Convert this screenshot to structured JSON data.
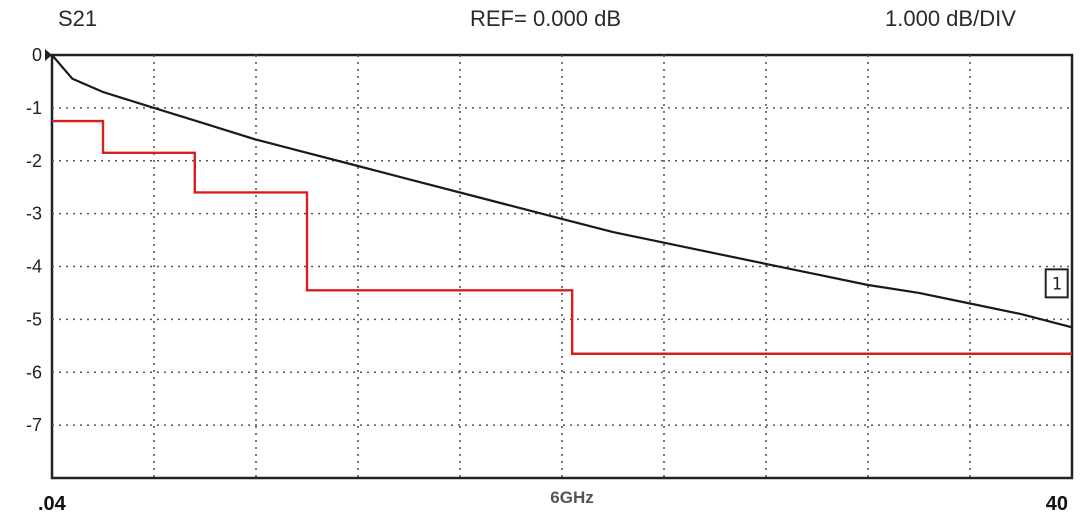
{
  "header": {
    "param": "S21",
    "ref": "REF= 0.000 dB",
    "scale": "1.000 dB/DIV"
  },
  "colors": {
    "trace": "#1a1a1a",
    "limit": "#d62020",
    "grid": "#555555",
    "frame": "#222222"
  },
  "chart_data": {
    "type": "line",
    "ylim": [
      -8,
      0
    ],
    "y_ticks": [
      "0",
      "-1",
      "-2",
      "-3",
      "-4",
      "-5",
      "-6",
      "-7"
    ],
    "x_tick_labels": [
      ".04",
      "6GHz",
      "40"
    ],
    "x_divisions": 10,
    "grid": true,
    "series": [
      {
        "role": "measured",
        "x_div": [
          0,
          0.2,
          0.5,
          1,
          1.5,
          2,
          2.5,
          3,
          3.5,
          4,
          4.5,
          5,
          5.5,
          6,
          6.5,
          7,
          7.5,
          8,
          8.5,
          9,
          9.5,
          10
        ],
        "y": [
          0,
          -0.45,
          -0.7,
          -1.0,
          -1.3,
          -1.6,
          -1.85,
          -2.1,
          -2.35,
          -2.6,
          -2.85,
          -3.1,
          -3.35,
          -3.55,
          -3.75,
          -3.95,
          -4.15,
          -4.35,
          -4.5,
          -4.7,
          -4.9,
          -5.15
        ]
      },
      {
        "role": "limit",
        "steps": [
          {
            "x_start": 0,
            "x_end": 0.5,
            "y": -1.25
          },
          {
            "x_start": 0.5,
            "x_end": 1.4,
            "y": -1.85
          },
          {
            "x_start": 1.4,
            "x_end": 2.5,
            "y": -2.6
          },
          {
            "x_start": 2.5,
            "x_end": 5.1,
            "y": -4.45
          },
          {
            "x_start": 5.1,
            "x_end": 10,
            "y": -5.65
          }
        ]
      }
    ],
    "marker": {
      "label": "1",
      "x_div": 9.85,
      "y": -4.3
    }
  }
}
